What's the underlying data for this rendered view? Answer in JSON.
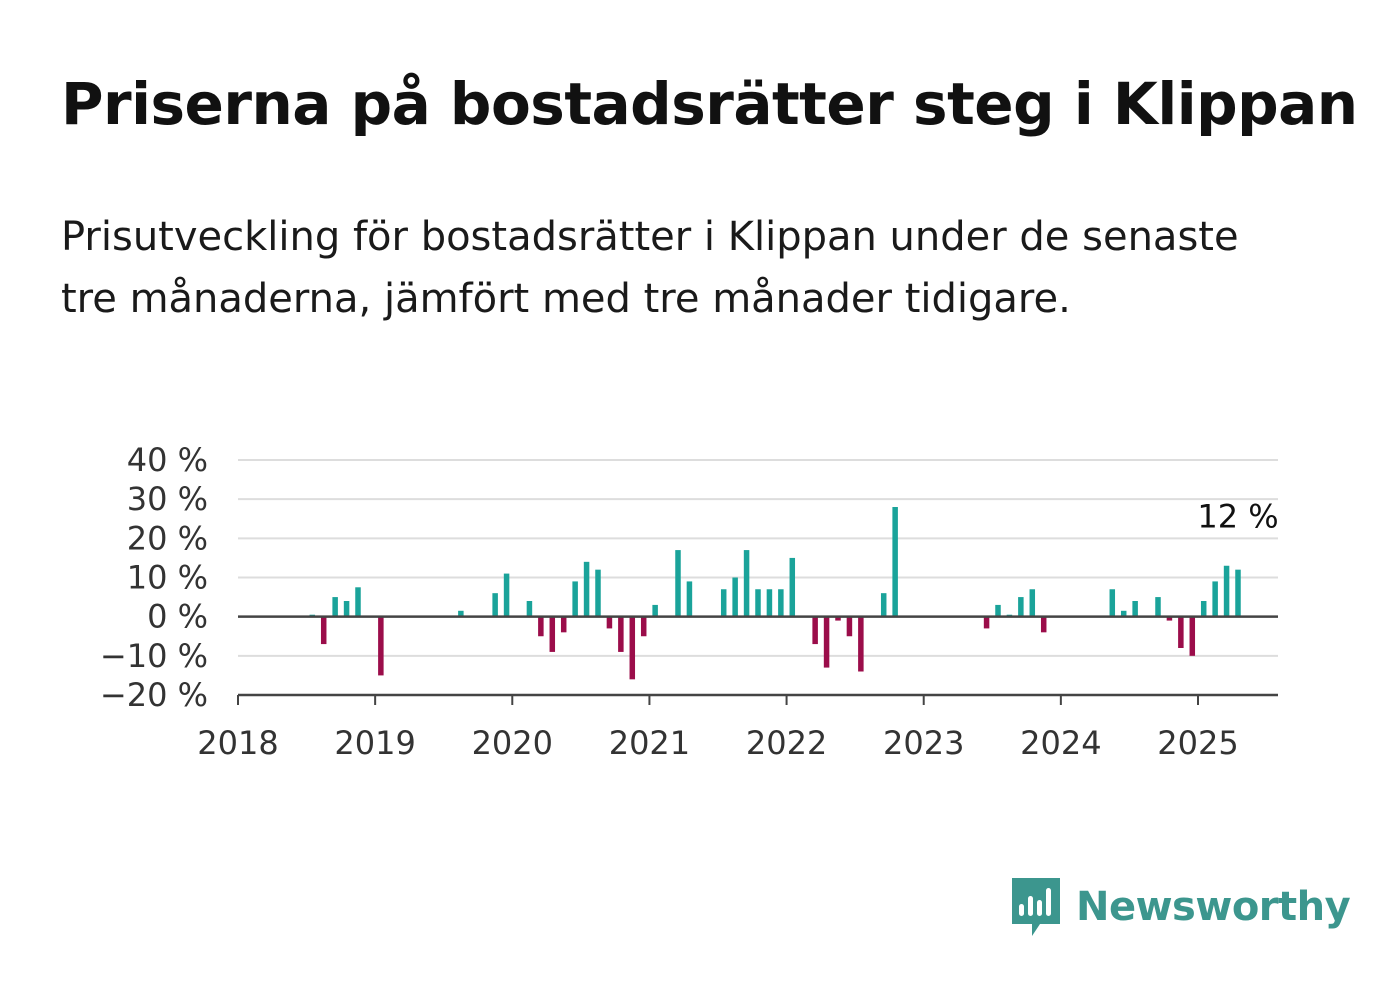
{
  "title": "Priserna på bostadsrätter steg i Klippan",
  "subtitle": "Prisutveckling för bostadsrätter i Klippan under de senaste tre månaderna, jämfört med tre månader tidigare.",
  "brand": {
    "name": "Newsworthy",
    "color": "#3c968e",
    "icon": "newsworthy-chart-logo-icon"
  },
  "colors": {
    "positive": "#1aa39a",
    "negative": "#9b0d4a",
    "grid": "#dddddd",
    "axis": "#444444"
  },
  "chart_data": {
    "type": "bar",
    "x_unit": "month",
    "ylim": [
      -20,
      40
    ],
    "y_ticks": [
      {
        "value": 40,
        "label": "40 %"
      },
      {
        "value": 30,
        "label": "30 %"
      },
      {
        "value": 20,
        "label": "20 %"
      },
      {
        "value": 10,
        "label": "10 %"
      },
      {
        "value": 0,
        "label": "0 %"
      },
      {
        "value": -10,
        "label": "−10 %"
      },
      {
        "value": -20,
        "label": "−20 %"
      }
    ],
    "x_range": [
      "2018-01",
      "2025-08"
    ],
    "x_ticks": [
      {
        "date": "2018-01",
        "label": "2018"
      },
      {
        "date": "2019-01",
        "label": "2019"
      },
      {
        "date": "2020-01",
        "label": "2020"
      },
      {
        "date": "2021-01",
        "label": "2021"
      },
      {
        "date": "2022-01",
        "label": "2022"
      },
      {
        "date": "2023-01",
        "label": "2023"
      },
      {
        "date": "2024-01",
        "label": "2024"
      },
      {
        "date": "2025-01",
        "label": "2025"
      }
    ],
    "grid": true,
    "points": [
      {
        "date": "2018-07",
        "value": 0.5
      },
      {
        "date": "2018-08",
        "value": -7
      },
      {
        "date": "2018-09",
        "value": 5
      },
      {
        "date": "2018-10",
        "value": 4
      },
      {
        "date": "2018-11",
        "value": 7.5
      },
      {
        "date": "2019-01",
        "value": -15
      },
      {
        "date": "2019-08",
        "value": 1.5
      },
      {
        "date": "2019-11",
        "value": 6
      },
      {
        "date": "2019-12",
        "value": 11
      },
      {
        "date": "2020-02",
        "value": 4
      },
      {
        "date": "2020-03",
        "value": -5
      },
      {
        "date": "2020-04",
        "value": -9
      },
      {
        "date": "2020-05",
        "value": -4
      },
      {
        "date": "2020-06",
        "value": 9
      },
      {
        "date": "2020-07",
        "value": 14
      },
      {
        "date": "2020-08",
        "value": 12
      },
      {
        "date": "2020-09",
        "value": -3
      },
      {
        "date": "2020-10",
        "value": -9
      },
      {
        "date": "2020-11",
        "value": -16
      },
      {
        "date": "2020-12",
        "value": -5
      },
      {
        "date": "2021-01",
        "value": 3
      },
      {
        "date": "2021-03",
        "value": 17
      },
      {
        "date": "2021-04",
        "value": 9
      },
      {
        "date": "2021-07",
        "value": 7
      },
      {
        "date": "2021-08",
        "value": 10
      },
      {
        "date": "2021-09",
        "value": 17
      },
      {
        "date": "2021-10",
        "value": 7
      },
      {
        "date": "2021-11",
        "value": 7
      },
      {
        "date": "2021-12",
        "value": 7
      },
      {
        "date": "2022-01",
        "value": 15
      },
      {
        "date": "2022-03",
        "value": -7
      },
      {
        "date": "2022-04",
        "value": -13
      },
      {
        "date": "2022-05",
        "value": -1
      },
      {
        "date": "2022-06",
        "value": -5
      },
      {
        "date": "2022-07",
        "value": -14
      },
      {
        "date": "2022-09",
        "value": 6
      },
      {
        "date": "2022-10",
        "value": 28
      },
      {
        "date": "2023-06",
        "value": -3
      },
      {
        "date": "2023-07",
        "value": 3
      },
      {
        "date": "2023-08",
        "value": 0.5
      },
      {
        "date": "2023-09",
        "value": 5
      },
      {
        "date": "2023-10",
        "value": 7
      },
      {
        "date": "2023-11",
        "value": -4
      },
      {
        "date": "2024-05",
        "value": 7
      },
      {
        "date": "2024-06",
        "value": 1.5
      },
      {
        "date": "2024-07",
        "value": 4
      },
      {
        "date": "2024-09",
        "value": 5
      },
      {
        "date": "2024-10",
        "value": -1
      },
      {
        "date": "2024-11",
        "value": -8
      },
      {
        "date": "2024-12",
        "value": -10
      },
      {
        "date": "2025-01",
        "value": 4
      },
      {
        "date": "2025-02",
        "value": 9
      },
      {
        "date": "2025-03",
        "value": 13
      },
      {
        "date": "2025-04",
        "value": 12
      }
    ],
    "annotation": {
      "date": "2025-04",
      "value": 12,
      "label": "12 %"
    }
  }
}
